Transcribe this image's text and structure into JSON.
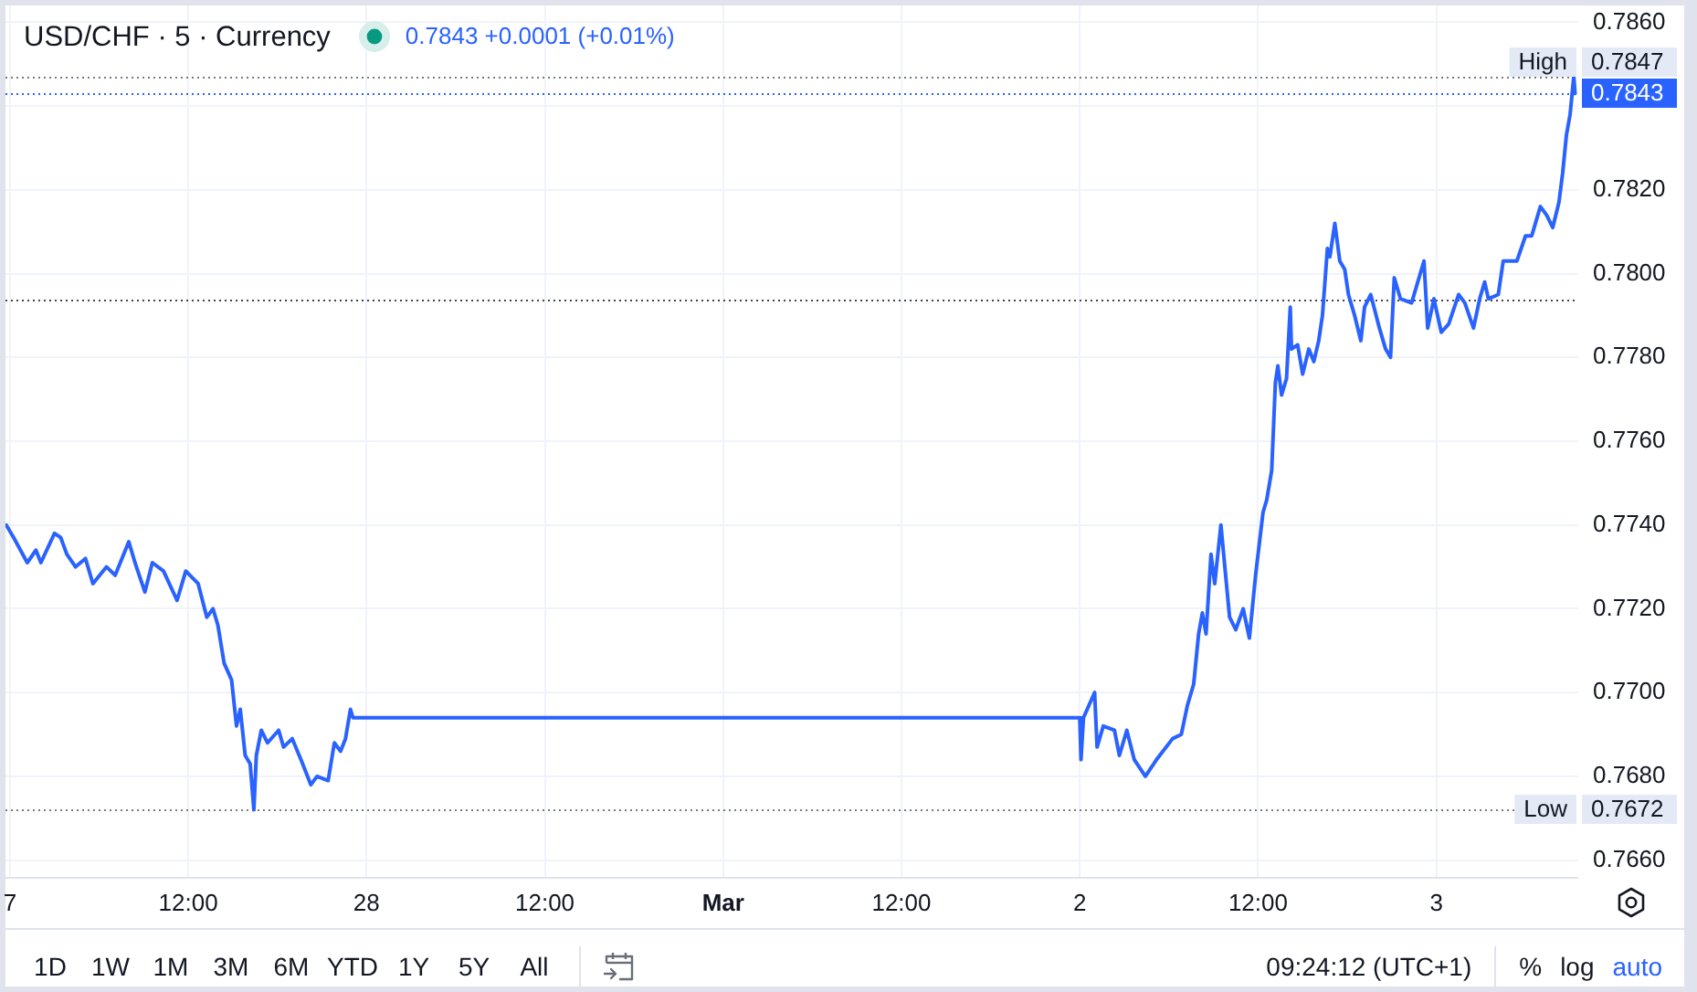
{
  "chart_data": {
    "type": "line",
    "title": "USD/CHF · 5 · Currency",
    "subtitle": "0.7843 +0.0001 (+0.01%)",
    "x": [
      "--02-26T23:45",
      "--02-27T00:15",
      "--02-27T01:10",
      "--02-27T01:45",
      "--02-27T02:05",
      "--02-27T03:00",
      "--02-27T03:25",
      "--02-27T03:50",
      "--02-27T04:25",
      "--02-27T05:05",
      "--02-27T05:35",
      "--02-27T06:30",
      "--02-27T07:05",
      "--02-27T08:00",
      "--02-27T08:25",
      "--02-27T09:05",
      "--02-27T09:35",
      "--02-27T10:20",
      "--02-27T11:15",
      "--02-27T11:50",
      "--02-27T12:40",
      "--02-27T13:15",
      "--02-27T13:40",
      "--02-27T14:00",
      "--02-27T14:25",
      "--02-27T14:55",
      "--02-27T15:15",
      "--02-27T15:30",
      "--02-27T15:50",
      "--02-27T16:10",
      "--02-27T16:25",
      "--02-27T16:35",
      "--02-27T16:55",
      "--02-27T17:20",
      "--02-27T18:05",
      "--02-27T18:25",
      "--02-27T19:00",
      "--02-27T19:35",
      "--02-27T20:15",
      "--02-27T20:40",
      "--02-27T21:25",
      "--02-27T21:50",
      "--02-27T22:15",
      "--02-27T22:35",
      "--02-27T22:55",
      "--02-27T23:05",
      "--03-02T00:00",
      "--03-02T00:05",
      "--03-02T00:15",
      "--03-02T01:00",
      "--03-02T01:10",
      "--03-02T01:35",
      "--03-02T02:20",
      "--03-02T02:40",
      "--03-02T03:10",
      "--03-02T03:40",
      "--03-02T04:25",
      "--03-02T05:10",
      "--03-02T06:15",
      "--03-02T06:50",
      "--03-02T07:15",
      "--03-02T07:40",
      "--03-02T08:00",
      "--03-02T08:15",
      "--03-02T08:30",
      "--03-02T08:50",
      "--03-02T09:05",
      "--03-02T09:30",
      "--03-02T10:05",
      "--03-02T10:30",
      "--03-02T11:00",
      "--03-02T11:25",
      "--03-02T11:50",
      "--03-02T12:20",
      "--03-02T12:35",
      "--03-02T12:55",
      "--03-02T13:10",
      "--03-02T13:20",
      "--03-02T13:35",
      "--03-02T13:55",
      "--03-02T14:10",
      "--03-02T14:15",
      "--03-02T14:40",
      "--03-02T15:00",
      "--03-02T15:25",
      "--03-02T15:45",
      "--03-02T16:05",
      "--03-02T16:20",
      "--03-02T16:40",
      "--03-02T16:50",
      "--03-02T17:10",
      "--03-02T17:30",
      "--03-02T17:50",
      "--03-02T18:05",
      "--03-02T18:30",
      "--03-02T18:55",
      "--03-02T19:10",
      "--03-02T19:35",
      "--03-02T20:10",
      "--03-02T20:35",
      "--03-02T20:55",
      "--03-02T21:10",
      "--03-02T21:35",
      "--03-02T22:20",
      "--03-02T23:10",
      "--03-02T23:25",
      "--03-02T23:50",
      "--03-03T00:20",
      "--03-03T00:50",
      "--03-03T01:30",
      "--03-03T01:55",
      "--03-03T02:30",
      "--03-03T02:55",
      "--03-03T03:15",
      "--03-03T03:30",
      "--03-03T04:10",
      "--03-03T04:30",
      "--03-03T05:25",
      "--03-03T06:00",
      "--03-03T06:25",
      "--03-03T07:00",
      "--03-03T07:25",
      "--03-03T07:50",
      "--03-03T08:15",
      "--03-03T08:30",
      "--03-03T08:45",
      "--03-03T09:00",
      "--03-03T09:15",
      "--03-03T09:20"
    ],
    "values": [
      0.774,
      0.7737,
      0.7731,
      0.7734,
      0.7731,
      0.7738,
      0.7737,
      0.7733,
      0.773,
      0.7732,
      0.7726,
      0.773,
      0.7728,
      0.7736,
      0.7731,
      0.7724,
      0.7731,
      0.7729,
      0.7722,
      0.7729,
      0.7726,
      0.7718,
      0.772,
      0.7716,
      0.7707,
      0.7703,
      0.7692,
      0.7696,
      0.7685,
      0.7683,
      0.7672,
      0.7685,
      0.7691,
      0.7688,
      0.7691,
      0.7687,
      0.7689,
      0.7684,
      0.7678,
      0.768,
      0.7679,
      0.7688,
      0.7686,
      0.7689,
      0.7696,
      0.7694,
      0.7694,
      0.7684,
      0.7694,
      0.77,
      0.7687,
      0.7692,
      0.7691,
      0.7685,
      0.7691,
      0.7684,
      0.768,
      0.7684,
      0.7689,
      0.769,
      0.7697,
      0.7702,
      0.7714,
      0.7719,
      0.7714,
      0.7733,
      0.7726,
      0.774,
      0.7718,
      0.7715,
      0.772,
      0.7713,
      0.7728,
      0.7743,
      0.7746,
      0.7753,
      0.7774,
      0.7778,
      0.7771,
      0.7775,
      0.7792,
      0.7782,
      0.7783,
      0.7776,
      0.7782,
      0.7779,
      0.7784,
      0.779,
      0.7806,
      0.7804,
      0.7812,
      0.7803,
      0.7801,
      0.7795,
      0.779,
      0.7784,
      0.7792,
      0.7795,
      0.7787,
      0.7782,
      0.778,
      0.7799,
      0.7794,
      0.7793,
      0.7803,
      0.7787,
      0.7794,
      0.7786,
      0.7788,
      0.7795,
      0.7793,
      0.7787,
      0.7794,
      0.7798,
      0.7794,
      0.7795,
      0.7803,
      0.7803,
      0.7809,
      0.7809,
      0.7816,
      0.7814,
      0.7811,
      0.7817,
      0.7824,
      0.7833,
      0.7838,
      0.7847,
      0.7843
    ],
    "color": "#2962ff",
    "xlim": [
      "--02-26T23:42",
      "--03-03T09:33"
    ],
    "xticks": [
      {
        "value": "--02-27T00:00",
        "label": "7"
      },
      {
        "value": "--02-27T12:00",
        "label": "12:00"
      },
      {
        "value": "--02-28T00:00",
        "label": "28"
      },
      {
        "value": "--02-28T12:00",
        "label": "12:00"
      },
      {
        "value": "--03-01T00:00",
        "label": "Mar"
      },
      {
        "value": "--03-01T12:00",
        "label": "12:00"
      },
      {
        "value": "--03-02T00:00",
        "label": "2"
      },
      {
        "value": "--03-02T12:00",
        "label": "12:00"
      },
      {
        "value": "--03-03T00:00",
        "label": "3"
      }
    ],
    "ylim": [
      0.7656,
      0.7864
    ],
    "yticks": [
      {
        "value": 0.766,
        "label": "0.7660"
      },
      {
        "value": 0.768,
        "label": "0.7680"
      },
      {
        "value": 0.77,
        "label": "0.7700"
      },
      {
        "value": 0.772,
        "label": "0.7720"
      },
      {
        "value": 0.774,
        "label": "0.7740"
      },
      {
        "value": 0.776,
        "label": "0.7760"
      },
      {
        "value": 0.778,
        "label": "0.7780"
      },
      {
        "value": 0.78,
        "label": "0.7800"
      },
      {
        "value": 0.782,
        "label": "0.7820"
      },
      {
        "value": 0.784,
        "label": null
      },
      {
        "value": 0.786,
        "label": "0.7860"
      }
    ],
    "grid": true,
    "ref_lines": [
      {
        "axis": "y",
        "value": 0.7843,
        "label": "0.7843",
        "color": "#2962ff",
        "line_style": "dotted"
      },
      {
        "axis": "y",
        "value": 0.7847,
        "label": "0.7847",
        "color": "#787b86",
        "line_style": "dotted"
      },
      {
        "axis": "y",
        "value": 0.7794,
        "color": "#434651",
        "line_style": "dotted"
      },
      {
        "axis": "y",
        "value": 0.7672,
        "label": "0.7672",
        "color": "#787b86",
        "line_style": "dotted"
      }
    ],
    "annotations": [
      {
        "text": "High",
        "x": "--03-03T09:33",
        "y": 0.7847
      },
      {
        "text": "Low",
        "x": "--03-03T09:33",
        "y": 0.7672
      },
      "1D",
      "1W",
      "1M",
      "3M",
      "6M",
      "YTD",
      "1Y",
      "5Y",
      "All",
      "09:24:12 (UTC+1)",
      "%",
      "log",
      "auto"
    ]
  }
}
